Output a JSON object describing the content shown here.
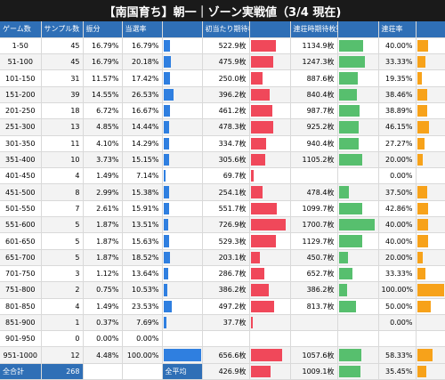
{
  "title": "【南国育ち】朝一｜ゾーン実戦値（3/4 現在)",
  "colors": {
    "header": "#2f6fb6",
    "blue": "#2f7fe0",
    "red": "#f0485a",
    "green": "#57bf6e",
    "orange": "#f7a21a"
  },
  "headers": [
    "ゲーム数",
    "サンプル数",
    "振分",
    "当選率",
    "",
    "初当たり期待枚数",
    "",
    "連荘時期待枚数",
    "",
    "連荘率",
    ""
  ],
  "rows": [
    {
      "zone": "1-50",
      "samples": "45",
      "share": "16.79%",
      "win": "16.79%",
      "win_v": 16.79,
      "first": "522.9枚",
      "first_v": 522.9,
      "chain": "1134.9枚",
      "chain_v": 1134.9,
      "rate": "40.00%",
      "rate_v": 40.0
    },
    {
      "zone": "51-100",
      "samples": "45",
      "share": "16.79%",
      "win": "20.18%",
      "win_v": 20.18,
      "first": "475.9枚",
      "first_v": 475.9,
      "chain": "1247.3枚",
      "chain_v": 1247.3,
      "rate": "33.33%",
      "rate_v": 33.33
    },
    {
      "zone": "101-150",
      "samples": "31",
      "share": "11.57%",
      "win": "17.42%",
      "win_v": 17.42,
      "first": "250.0枚",
      "first_v": 250.0,
      "chain": "887.6枚",
      "chain_v": 887.6,
      "rate": "19.35%",
      "rate_v": 19.35
    },
    {
      "zone": "151-200",
      "samples": "39",
      "share": "14.55%",
      "win": "26.53%",
      "win_v": 26.53,
      "first": "396.2枚",
      "first_v": 396.2,
      "chain": "840.4枚",
      "chain_v": 840.4,
      "rate": "38.46%",
      "rate_v": 38.46
    },
    {
      "zone": "201-250",
      "samples": "18",
      "share": "6.72%",
      "win": "16.67%",
      "win_v": 16.67,
      "first": "461.2枚",
      "first_v": 461.2,
      "chain": "987.7枚",
      "chain_v": 987.7,
      "rate": "38.89%",
      "rate_v": 38.89
    },
    {
      "zone": "251-300",
      "samples": "13",
      "share": "4.85%",
      "win": "14.44%",
      "win_v": 14.44,
      "first": "478.3枚",
      "first_v": 478.3,
      "chain": "925.2枚",
      "chain_v": 925.2,
      "rate": "46.15%",
      "rate_v": 46.15
    },
    {
      "zone": "301-350",
      "samples": "11",
      "share": "4.10%",
      "win": "14.29%",
      "win_v": 14.29,
      "first": "334.7枚",
      "first_v": 334.7,
      "chain": "940.4枚",
      "chain_v": 940.4,
      "rate": "27.27%",
      "rate_v": 27.27
    },
    {
      "zone": "351-400",
      "samples": "10",
      "share": "3.73%",
      "win": "15.15%",
      "win_v": 15.15,
      "first": "305.6枚",
      "first_v": 305.6,
      "chain": "1105.2枚",
      "chain_v": 1105.2,
      "rate": "20.00%",
      "rate_v": 20.0
    },
    {
      "zone": "401-450",
      "samples": "4",
      "share": "1.49%",
      "win": "7.14%",
      "win_v": 7.14,
      "first": "69.7枚",
      "first_v": 69.7,
      "chain": "",
      "chain_v": 0,
      "rate": "0.00%",
      "rate_v": 0
    },
    {
      "zone": "451-500",
      "samples": "8",
      "share": "2.99%",
      "win": "15.38%",
      "win_v": 15.38,
      "first": "254.1枚",
      "first_v": 254.1,
      "chain": "478.4枚",
      "chain_v": 478.4,
      "rate": "37.50%",
      "rate_v": 37.5
    },
    {
      "zone": "501-550",
      "samples": "7",
      "share": "2.61%",
      "win": "15.91%",
      "win_v": 15.91,
      "first": "551.7枚",
      "first_v": 551.7,
      "chain": "1099.7枚",
      "chain_v": 1099.7,
      "rate": "42.86%",
      "rate_v": 42.86
    },
    {
      "zone": "551-600",
      "samples": "5",
      "share": "1.87%",
      "win": "13.51%",
      "win_v": 13.51,
      "first": "726.9枚",
      "first_v": 726.9,
      "chain": "1700.7枚",
      "chain_v": 1700.7,
      "rate": "40.00%",
      "rate_v": 40.0
    },
    {
      "zone": "601-650",
      "samples": "5",
      "share": "1.87%",
      "win": "15.63%",
      "win_v": 15.63,
      "first": "529.3枚",
      "first_v": 529.3,
      "chain": "1129.7枚",
      "chain_v": 1129.7,
      "rate": "40.00%",
      "rate_v": 40.0
    },
    {
      "zone": "651-700",
      "samples": "5",
      "share": "1.87%",
      "win": "18.52%",
      "win_v": 18.52,
      "first": "203.1枚",
      "first_v": 203.1,
      "chain": "450.7枚",
      "chain_v": 450.7,
      "rate": "20.00%",
      "rate_v": 20.0
    },
    {
      "zone": "701-750",
      "samples": "3",
      "share": "1.12%",
      "win": "13.64%",
      "win_v": 13.64,
      "first": "286.7枚",
      "first_v": 286.7,
      "chain": "652.7枚",
      "chain_v": 652.7,
      "rate": "33.33%",
      "rate_v": 33.33
    },
    {
      "zone": "751-800",
      "samples": "2",
      "share": "0.75%",
      "win": "10.53%",
      "win_v": 10.53,
      "first": "386.2枚",
      "first_v": 386.2,
      "chain": "386.2枚",
      "chain_v": 386.2,
      "rate": "100.00%",
      "rate_v": 100.0
    },
    {
      "zone": "801-850",
      "samples": "4",
      "share": "1.49%",
      "win": "23.53%",
      "win_v": 23.53,
      "first": "497.2枚",
      "first_v": 497.2,
      "chain": "813.7枚",
      "chain_v": 813.7,
      "rate": "50.00%",
      "rate_v": 50.0
    },
    {
      "zone": "851-900",
      "samples": "1",
      "share": "0.37%",
      "win": "7.69%",
      "win_v": 7.69,
      "first": "37.7枚",
      "first_v": 37.7,
      "chain": "",
      "chain_v": 0,
      "rate": "0.00%",
      "rate_v": 0
    },
    {
      "zone": "901-950",
      "samples": "0",
      "share": "0.00%",
      "win": "0.00%",
      "win_v": 0,
      "first": "",
      "first_v": 0,
      "chain": "",
      "chain_v": 0,
      "rate": "",
      "rate_v": 0
    },
    {
      "zone": "951-1000",
      "samples": "12",
      "share": "4.48%",
      "win": "100.00%",
      "win_v": 100.0,
      "first": "656.6枚",
      "first_v": 656.6,
      "chain": "1057.6枚",
      "chain_v": 1057.6,
      "rate": "58.33%",
      "rate_v": 58.33
    }
  ],
  "footer": {
    "total_label": "全合計",
    "total_value": "268",
    "avg_label": "全平均",
    "avg_first": "426.9枚",
    "avg_first_v": 426.9,
    "avg_chain": "1009.1枚",
    "avg_chain_v": 1009.1,
    "avg_rate": "35.45%",
    "avg_rate_v": 35.45
  },
  "scale": {
    "win_max": 100,
    "first_max": 800,
    "chain_max": 1800,
    "rate_max": 100
  }
}
